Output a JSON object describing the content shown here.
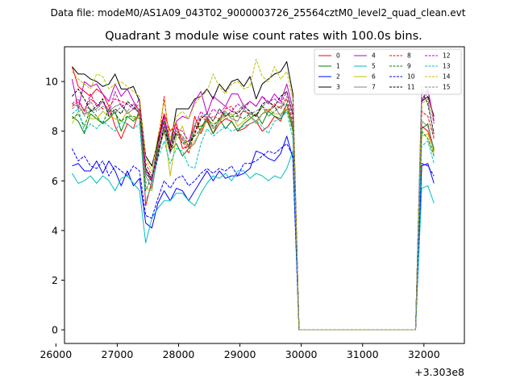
{
  "figure": {
    "suptitle": "Data file: modeM0/AS1A09_043T02_9000003726_25564cztM0_level2_quad_clean.evt",
    "title": "Quadrant 3 module wise count rates with 100.0s bins.",
    "x_offset_label": "+3.303e8"
  },
  "chart_data": {
    "type": "line",
    "title": "Quadrant 3 module wise count rates with 100.0s bins.",
    "xlabel": "",
    "ylabel": "",
    "xlim": [
      26140,
      32660
    ],
    "ylim": [
      -0.55,
      11.4
    ],
    "x_ticks": [
      26000,
      27000,
      28000,
      29000,
      30000,
      31000,
      32000
    ],
    "x_tick_labels": [
      "26000",
      "27000",
      "28000",
      "29000",
      "30000",
      "31000",
      "32000"
    ],
    "y_ticks": [
      0,
      2,
      4,
      6,
      8,
      10
    ],
    "y_tick_labels": [
      "0",
      "2",
      "4",
      "6",
      "8",
      "10"
    ],
    "grid": false,
    "legend_position": "top-right",
    "x_start": 26264,
    "x_step": 100,
    "gap_index_start": 37,
    "gap_index_end": 57,
    "series": [
      {
        "name": "0",
        "color": "#ff0000",
        "dash": "solid",
        "pre": [
          10.6,
          9.8,
          9.6,
          9.4,
          9.7,
          9.5,
          9.0,
          8.2,
          7.7,
          8.3,
          8.1,
          8.9,
          5.0,
          6.0,
          7.7,
          8.7,
          8.0,
          8.3,
          7.3,
          7.4,
          8.6,
          7.9,
          8.5,
          7.9,
          8.3,
          8.5,
          8.4,
          8.0,
          8.1,
          8.3,
          8.4,
          8.0,
          8.2,
          8.6,
          8.4,
          9.1,
          8.2
        ],
        "post": [
          8.2,
          8.0,
          7.3
        ]
      },
      {
        "name": "1",
        "color": "#008000",
        "dash": "solid",
        "pre": [
          8.6,
          8.4,
          7.9,
          8.7,
          8.5,
          8.3,
          8.5,
          8.8,
          8.0,
          8.6,
          8.4,
          8.7,
          6.3,
          6.0,
          7.6,
          8.4,
          7.2,
          7.5,
          7.0,
          7.3,
          8.2,
          8.2,
          8.4,
          7.9,
          8.5,
          8.1,
          8.4,
          8.0,
          8.3,
          8.5,
          8.7,
          8.3,
          8.8,
          8.6,
          8.5,
          8.9,
          8.1
        ],
        "post": [
          8.1,
          8.3,
          7.2
        ]
      },
      {
        "name": "2",
        "color": "#0000ff",
        "dash": "solid",
        "pre": [
          6.6,
          6.7,
          6.4,
          6.4,
          6.8,
          6.3,
          6.8,
          6.4,
          5.8,
          6.4,
          5.8,
          6.1,
          4.3,
          4.1,
          5.1,
          5.6,
          5.2,
          5.7,
          5.6,
          5.2,
          5.6,
          6.0,
          6.4,
          6.0,
          6.4,
          6.1,
          6.2,
          6.2,
          6.3,
          6.5,
          7.2,
          7.1,
          6.9,
          6.8,
          7.1,
          7.8,
          6.9
        ],
        "post": [
          6.6,
          6.7,
          5.9
        ]
      },
      {
        "name": "3",
        "color": "#000000",
        "dash": "solid",
        "pre": [
          10.6,
          10.3,
          10.3,
          10.1,
          10.0,
          9.8,
          9.9,
          10.3,
          9.7,
          9.7,
          9.8,
          9.2,
          7.0,
          6.6,
          7.6,
          8.6,
          7.4,
          8.9,
          8.9,
          8.9,
          9.3,
          9.4,
          9.7,
          9.3,
          9.9,
          9.6,
          10.0,
          10.1,
          9.8,
          10.2,
          9.3,
          9.9,
          10.1,
          10.3,
          10.4,
          10.8,
          9.5
        ],
        "post": [
          9.2,
          9.4,
          8.6
        ]
      },
      {
        "name": "4",
        "color": "#bf00bf",
        "dash": "solid",
        "pre": [
          10.1,
          8.9,
          10.0,
          9.8,
          9.9,
          9.5,
          9.2,
          9.9,
          9.4,
          9.7,
          9.2,
          8.8,
          6.5,
          6.0,
          7.4,
          8.6,
          7.5,
          8.4,
          8.6,
          8.5,
          9.2,
          9.6,
          8.7,
          9.4,
          9.2,
          9.0,
          9.5,
          9.5,
          9.0,
          9.2,
          9.0,
          9.4,
          9.1,
          9.5,
          9.2,
          9.9,
          8.9
        ],
        "post": [
          9.2,
          9.7,
          8.4
        ]
      },
      {
        "name": "5",
        "color": "#00bfbf",
        "dash": "solid",
        "pre": [
          6.3,
          5.9,
          6.0,
          6.2,
          5.9,
          6.2,
          6.0,
          5.6,
          6.1,
          6.2,
          5.9,
          5.6,
          3.5,
          4.5,
          4.9,
          5.2,
          5.2,
          5.5,
          5.5,
          5.2,
          5.0,
          5.5,
          5.9,
          6.2,
          6.1,
          6.3,
          6.0,
          6.4,
          6.4,
          6.1,
          6.3,
          6.2,
          6.0,
          6.2,
          6.1,
          6.5,
          7.2
        ],
        "post": [
          5.7,
          5.8,
          5.1
        ]
      },
      {
        "name": "6",
        "color": "#bfbf00",
        "dash": "solid",
        "pre": [
          8.3,
          8.8,
          8.9,
          8.5,
          8.5,
          8.8,
          8.6,
          8.5,
          8.4,
          8.8,
          8.5,
          8.6,
          5.7,
          5.6,
          7.1,
          8.1,
          6.2,
          7.8,
          8.2,
          7.3,
          7.6,
          8.0,
          8.5,
          8.3,
          8.4,
          8.6,
          8.7,
          8.2,
          8.4,
          8.6,
          8.3,
          8.7,
          8.9,
          8.7,
          8.7,
          8.9,
          8.0
        ],
        "post": [
          7.8,
          7.9,
          7.1
        ]
      },
      {
        "name": "7",
        "color": "#808080",
        "dash": "solid",
        "pre": [
          9.1,
          9.0,
          8.7,
          8.8,
          8.9,
          9.2,
          8.8,
          9.0,
          9.1,
          8.7,
          8.9,
          8.8,
          6.2,
          5.7,
          7.1,
          8.0,
          7.1,
          7.9,
          7.7,
          7.3,
          7.5,
          8.1,
          8.6,
          8.1,
          8.4,
          8.8,
          8.5,
          8.4,
          8.9,
          8.6,
          8.4,
          8.7,
          8.8,
          9.0,
          8.6,
          9.1,
          8.2
        ],
        "post": [
          8.4,
          8.2,
          7.3
        ]
      },
      {
        "name": "8",
        "color": "#ff0000",
        "dash": "dashed",
        "pre": [
          9.0,
          9.2,
          8.8,
          9.3,
          9.1,
          8.9,
          9.0,
          9.3,
          9.2,
          9.1,
          8.9,
          9.1,
          6.7,
          6.2,
          7.2,
          9.4,
          7.3,
          8.2,
          7.6,
          7.1,
          8.0,
          8.6,
          8.4,
          8.6,
          8.5,
          8.9,
          9.0,
          8.6,
          8.8,
          8.7,
          8.6,
          9.0,
          8.8,
          9.1,
          8.9,
          9.3,
          8.3
        ],
        "post": [
          8.8,
          8.6,
          7.7
        ]
      },
      {
        "name": "9",
        "color": "#008000",
        "dash": "dashed",
        "pre": [
          8.5,
          8.7,
          8.2,
          8.9,
          8.6,
          8.3,
          8.9,
          8.7,
          8.4,
          8.6,
          8.6,
          8.5,
          5.6,
          6.2,
          7.2,
          8.0,
          7.5,
          7.9,
          7.5,
          7.6,
          7.8,
          8.1,
          8.5,
          8.2,
          8.5,
          8.7,
          8.6,
          8.6,
          8.5,
          8.7,
          8.6,
          9.0,
          8.6,
          8.8,
          9.0,
          9.1,
          8.0
        ],
        "post": [
          8.0,
          7.7,
          7.0
        ]
      },
      {
        "name": "10",
        "color": "#0000ff",
        "dash": "dashed",
        "pre": [
          7.3,
          6.8,
          7.0,
          6.6,
          6.5,
          6.8,
          6.2,
          6.6,
          6.4,
          6.2,
          6.6,
          6.4,
          4.6,
          4.5,
          5.3,
          6.0,
          5.7,
          6.1,
          6.2,
          5.8,
          6.0,
          6.3,
          6.5,
          6.3,
          6.5,
          6.4,
          6.6,
          6.2,
          6.7,
          6.7,
          6.8,
          7.0,
          7.2,
          7.1,
          7.3,
          7.5,
          7.0
        ],
        "post": [
          6.7,
          6.6,
          6.2
        ]
      },
      {
        "name": "11",
        "color": "#000000",
        "dash": "dashed",
        "pre": [
          9.4,
          9.7,
          9.3,
          8.8,
          9.0,
          9.3,
          8.6,
          8.9,
          8.7,
          9.2,
          9.0,
          8.7,
          6.5,
          6.1,
          7.0,
          8.2,
          7.2,
          8.0,
          7.8,
          7.4,
          7.9,
          8.5,
          8.7,
          8.4,
          8.9,
          8.6,
          8.8,
          8.7,
          9.0,
          8.8,
          8.6,
          9.1,
          9.2,
          9.0,
          9.4,
          9.6,
          8.7
        ],
        "post": [
          9.6,
          9.1,
          7.9
        ]
      },
      {
        "name": "12",
        "color": "#bf00bf",
        "dash": "dashed",
        "pre": [
          9.1,
          9.3,
          8.8,
          9.5,
          9.0,
          9.2,
          8.7,
          9.6,
          9.0,
          9.1,
          8.9,
          9.3,
          6.4,
          6.0,
          7.3,
          8.3,
          7.5,
          8.1,
          8.0,
          7.6,
          8.2,
          8.8,
          8.5,
          8.9,
          8.7,
          9.0,
          8.8,
          9.1,
          8.9,
          9.2,
          9.0,
          9.4,
          9.2,
          9.3,
          9.1,
          9.6,
          8.6
        ],
        "post": [
          9.3,
          9.6,
          8.3
        ]
      },
      {
        "name": "13",
        "color": "#00bfbf",
        "dash": "dashed",
        "pre": [
          8.7,
          8.9,
          8.0,
          8.3,
          8.1,
          8.4,
          8.2,
          8.0,
          8.4,
          8.3,
          8.1,
          8.3,
          5.2,
          5.8,
          6.9,
          7.6,
          6.7,
          7.3,
          7.2,
          6.6,
          6.5,
          7.5,
          8.1,
          7.8,
          8.0,
          8.2,
          8.0,
          8.1,
          8.2,
          8.3,
          8.4,
          8.2,
          7.9,
          8.4,
          8.5,
          8.8,
          7.7
        ],
        "post": [
          7.4,
          7.6,
          6.7
        ]
      },
      {
        "name": "14",
        "color": "#bfbf00",
        "dash": "dashed",
        "pre": [
          10.4,
          10.1,
          9.9,
          9.7,
          10.3,
          10.2,
          9.7,
          9.9,
          10.0,
          9.8,
          9.6,
          9.4,
          6.9,
          6.4,
          7.8,
          9.2,
          7.7,
          8.6,
          8.8,
          8.5,
          9.1,
          9.4,
          9.6,
          10.3,
          9.8,
          9.5,
          9.9,
          10.0,
          9.7,
          9.8,
          10.9,
          10.2,
          10.0,
          10.6,
          10.1,
          10.4,
          9.3
        ],
        "post": [
          9.1,
          9.3,
          8.5
        ]
      },
      {
        "name": "15",
        "color": "#808080",
        "dash": "dashed",
        "pre": [
          8.9,
          9.1,
          8.6,
          9.2,
          8.8,
          9.0,
          8.9,
          8.7,
          9.0,
          8.8,
          9.1,
          8.7,
          5.9,
          6.2,
          7.4,
          8.2,
          7.6,
          8.0,
          7.8,
          7.4,
          8.3,
          8.6,
          8.7,
          8.4,
          8.9,
          8.5,
          8.6,
          8.8,
          9.1,
          8.7,
          8.8,
          9.0,
          9.2,
          8.9,
          9.0,
          9.4,
          8.4
        ],
        "post": [
          9.8,
          9.3,
          7.7
        ]
      }
    ]
  }
}
